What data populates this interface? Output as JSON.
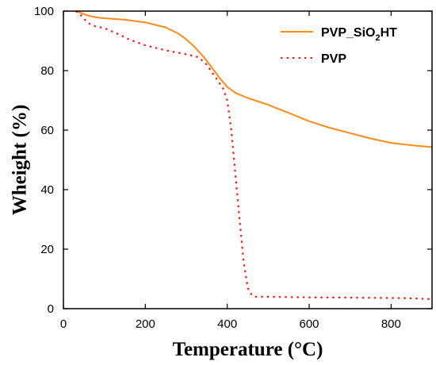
{
  "chart_data": {
    "type": "line",
    "title": "",
    "xlabel": "Temperature (°C)",
    "ylabel": "Wheight (%)",
    "xlim": [
      0,
      900
    ],
    "ylim": [
      0,
      100
    ],
    "x_ticks": [
      0,
      200,
      400,
      600,
      800
    ],
    "y_ticks": [
      0,
      20,
      40,
      60,
      80,
      100
    ],
    "grid": false,
    "legend_position": "top-right",
    "series": [
      {
        "name": "PVP_SiO2HT",
        "legend_label": {
          "main": "PVP_SiO",
          "sub": "2",
          "tail": "HT"
        },
        "color": "#ff8a1c",
        "style": "solid",
        "x": [
          30,
          40,
          60,
          80,
          100,
          150,
          200,
          250,
          280,
          300,
          320,
          340,
          360,
          380,
          400,
          420,
          450,
          500,
          550,
          600,
          650,
          700,
          750,
          800,
          850,
          900
        ],
        "y": [
          100,
          99.5,
          98.5,
          97.9,
          97.6,
          97.1,
          96.2,
          94.5,
          92.5,
          90.5,
          88,
          85,
          81.5,
          77.8,
          74.5,
          72.5,
          70.8,
          68.5,
          65.8,
          63,
          60.8,
          59,
          57.2,
          55.7,
          54.9,
          54.3
        ]
      },
      {
        "name": "PVP",
        "legend_label": {
          "main": "PVP",
          "sub": "",
          "tail": ""
        },
        "color": "#ff1a1a",
        "style": "dotted",
        "x": [
          30,
          40,
          60,
          80,
          100,
          130,
          160,
          200,
          250,
          300,
          330,
          350,
          370,
          390,
          400,
          410,
          420,
          430,
          440,
          450,
          460,
          470,
          500,
          600,
          700,
          800,
          850,
          900
        ],
        "y": [
          100,
          99,
          96,
          94.8,
          94.3,
          92.5,
          90.5,
          88.5,
          86.8,
          85.5,
          84.5,
          82,
          78,
          74,
          70,
          60,
          45,
          30,
          16,
          7,
          4.5,
          4,
          4,
          3.8,
          3.7,
          3.6,
          3.5,
          3.2
        ]
      }
    ]
  }
}
